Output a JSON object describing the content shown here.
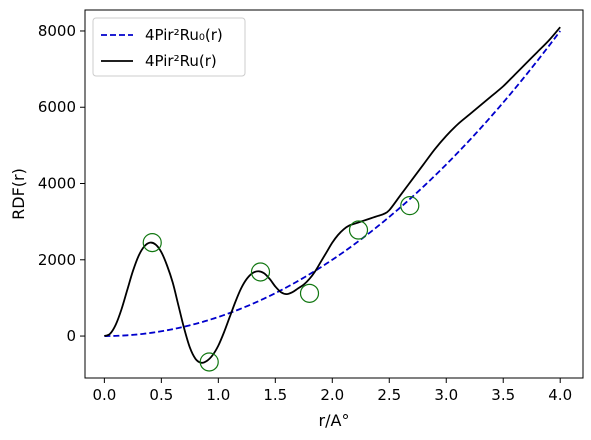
{
  "chart_data": {
    "type": "line",
    "xlabel": "r/A°",
    "ylabel": "RDF(r)",
    "xlim": [
      -0.17,
      4.2
    ],
    "ylim": [
      -1100,
      8550
    ],
    "xticks": [
      0.0,
      0.5,
      1.0,
      1.5,
      2.0,
      2.5,
      3.0,
      3.5,
      4.0
    ],
    "xtick_labels": [
      "0.0",
      "0.5",
      "1.0",
      "1.5",
      "2.0",
      "2.5",
      "3.0",
      "3.5",
      "4.0"
    ],
    "yticks": [
      0,
      2000,
      4000,
      6000,
      8000
    ],
    "ytick_labels": [
      "0",
      "2000",
      "4000",
      "6000",
      "8000"
    ],
    "grid": false,
    "legend": {
      "placement": "top-left"
    },
    "series": [
      {
        "name": "4Pir²Ru₀(r)",
        "style": "dashed",
        "color": "#0000cc",
        "function": "quadratic",
        "coefficient": 500
      },
      {
        "name": "4Pir²Ru(r)",
        "style": "solid",
        "color": "#000000",
        "x": [
          0.0,
          0.05,
          0.1,
          0.15,
          0.2,
          0.25,
          0.3,
          0.35,
          0.4,
          0.45,
          0.5,
          0.55,
          0.6,
          0.65,
          0.7,
          0.75,
          0.8,
          0.85,
          0.9,
          0.95,
          1.0,
          1.05,
          1.1,
          1.15,
          1.2,
          1.25,
          1.3,
          1.35,
          1.4,
          1.45,
          1.5,
          1.55,
          1.6,
          1.65,
          1.7,
          1.75,
          1.8,
          1.85,
          1.9,
          1.95,
          2.0,
          2.05,
          2.1,
          2.15,
          2.2,
          2.25,
          2.3,
          2.35,
          2.4,
          2.45,
          2.5,
          2.6,
          2.7,
          2.8,
          2.9,
          3.0,
          3.1,
          3.2,
          3.3,
          3.4,
          3.5,
          3.6,
          3.7,
          3.8,
          3.9,
          4.0
        ],
        "y": [
          0,
          60,
          300,
          700,
          1200,
          1700,
          2100,
          2350,
          2450,
          2400,
          2200,
          1850,
          1400,
          800,
          200,
          -300,
          -600,
          -700,
          -650,
          -500,
          -250,
          100,
          500,
          900,
          1250,
          1500,
          1650,
          1700,
          1650,
          1500,
          1300,
          1150,
          1100,
          1150,
          1250,
          1350,
          1500,
          1700,
          1950,
          2200,
          2450,
          2650,
          2800,
          2900,
          2950,
          3000,
          3050,
          3100,
          3150,
          3200,
          3300,
          3700,
          4100,
          4500,
          4900,
          5250,
          5550,
          5800,
          6050,
          6300,
          6550,
          6850,
          7150,
          7450,
          7750,
          8100
        ]
      }
    ],
    "markers": {
      "shape": "open-circle",
      "color": "#117711",
      "points": [
        {
          "x": 0.42,
          "y": 2450
        },
        {
          "x": 0.92,
          "y": -680
        },
        {
          "x": 1.37,
          "y": 1680
        },
        {
          "x": 1.8,
          "y": 1120
        },
        {
          "x": 2.23,
          "y": 2780
        },
        {
          "x": 2.68,
          "y": 3420
        }
      ]
    }
  }
}
